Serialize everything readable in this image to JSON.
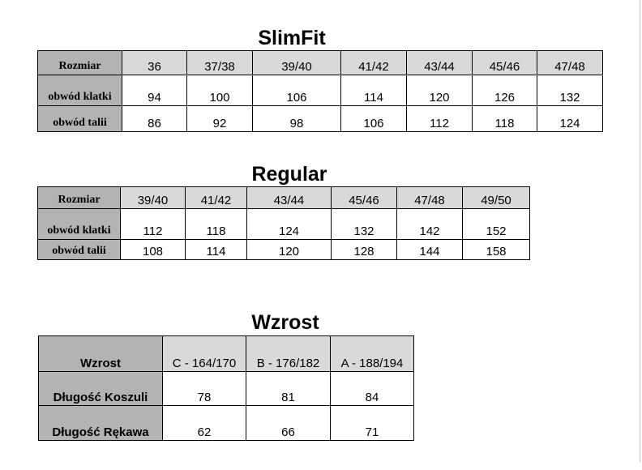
{
  "slimfit": {
    "title": "SlimFit",
    "header_label": "Rozmiar",
    "sizes": [
      "36",
      "37/38",
      "39/40",
      "41/42",
      "43/44",
      "45/46",
      "47/48"
    ],
    "rows": [
      {
        "label": "obwód klatki",
        "values": [
          "94",
          "100",
          "106",
          "114",
          "120",
          "126",
          "132"
        ]
      },
      {
        "label": "obwód talii",
        "values": [
          "86",
          "92",
          "98",
          "106",
          "112",
          "118",
          "124"
        ]
      }
    ]
  },
  "regular": {
    "title": "Regular",
    "header_label": "Rozmiar",
    "sizes": [
      "39/40",
      "41/42",
      "43/44",
      "45/46",
      "47/48",
      "49/50"
    ],
    "rows": [
      {
        "label": "obwód klatki",
        "values": [
          "112",
          "118",
          "124",
          "132",
          "142",
          "152"
        ]
      },
      {
        "label": "obwód talii",
        "values": [
          "108",
          "114",
          "120",
          "128",
          "144",
          "158"
        ]
      }
    ]
  },
  "wzrost": {
    "title": "Wzrost",
    "header_label": "Wzrost",
    "sizes": [
      "C - 164/170",
      "B - 176/182",
      "A - 188/194"
    ],
    "rows": [
      {
        "label": "Długość Koszuli",
        "values": [
          "78",
          "81",
          "84"
        ]
      },
      {
        "label": "Długość Rękawa",
        "values": [
          "62",
          "66",
          "71"
        ]
      }
    ]
  }
}
